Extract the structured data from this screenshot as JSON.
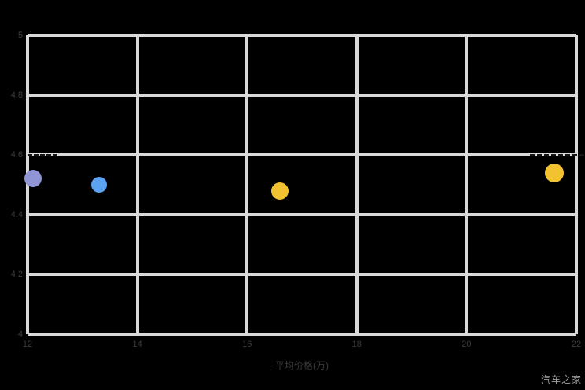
{
  "watermark": {
    "label": "汽车之家"
  },
  "colors": {
    "background": "#000000",
    "grid": "#d9d9d9",
    "axis_text": "#3b3b3b",
    "reference_line": "#161616",
    "watermark_text": "#a0a0a0"
  },
  "chart_data": {
    "type": "scatter",
    "title": "",
    "xlabel": "平均价格(万)",
    "ylabel": "",
    "xlim": [
      12,
      22
    ],
    "ylim": [
      4,
      5
    ],
    "grid": true,
    "legend": false,
    "xticks": [
      {
        "v": 12,
        "label": "12"
      },
      {
        "v": 14,
        "label": "14"
      },
      {
        "v": 16,
        "label": "16"
      },
      {
        "v": 18,
        "label": "18"
      },
      {
        "v": 20,
        "label": "20"
      },
      {
        "v": 22,
        "label": "22"
      }
    ],
    "yticks": [
      {
        "v": 5,
        "label": "5"
      },
      {
        "v": 4.8,
        "label": "4.8"
      },
      {
        "v": 4.6,
        "label": "4.6"
      },
      {
        "v": 4.4,
        "label": "4.4"
      },
      {
        "v": 4.2,
        "label": "4.2"
      },
      {
        "v": 4,
        "label": "4"
      }
    ],
    "reference_segments": [
      {
        "y": 4.6,
        "x1": 12.0,
        "x2": 12.55
      },
      {
        "y": 4.6,
        "x1": 21.15,
        "x2": 22.15
      }
    ],
    "points": [
      {
        "x": 12.1,
        "y": 4.52,
        "r": 11,
        "color": "#9095d6"
      },
      {
        "x": 13.3,
        "y": 4.5,
        "r": 10,
        "color": "#5ba3f0"
      },
      {
        "x": 16.6,
        "y": 4.48,
        "r": 11,
        "color": "#f3c231"
      },
      {
        "x": 21.6,
        "y": 4.54,
        "r": 12,
        "color": "#f3c231"
      }
    ]
  }
}
